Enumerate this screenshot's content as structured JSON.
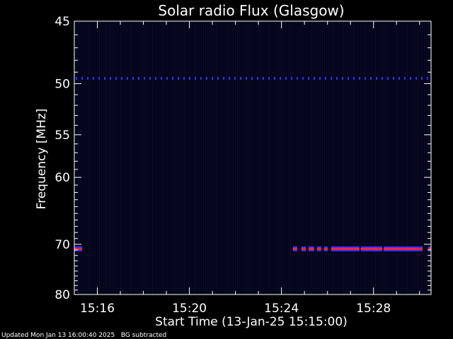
{
  "chart_data": {
    "type": "heatmap",
    "title": "Solar radio Flux (Glasgow)",
    "xlabel": "Start Time (13-Jan-25 15:15:00)",
    "ylabel": "Frequency [MHz]",
    "x_unit": "time",
    "xlim": [
      "15:15:00",
      "15:30:30"
    ],
    "x_ticks": [
      "15:16",
      "15:20",
      "15:24",
      "15:28"
    ],
    "y_ticks": [
      45,
      50,
      55,
      60,
      70,
      80
    ],
    "ylim": [
      45,
      80
    ],
    "background_color": "#05051a",
    "emission_color": "#ff2040",
    "emission_edge_color": "#3030ff",
    "bands": [
      {
        "freq": 49.5,
        "start": "15:15:00",
        "end": "15:30:30",
        "intensity": "low",
        "style": "dashed"
      },
      {
        "freq": 70.8,
        "start": "15:15:00",
        "end": "15:15:20",
        "intensity": "high",
        "style": "solid"
      },
      {
        "freq": 70.8,
        "start": "15:24:30",
        "end": "15:30:30",
        "intensity": "high",
        "style": "dashed-dense"
      }
    ]
  },
  "footer": {
    "updated": "Updated Mon Jan 13 16:00:40 2025",
    "note": "BG subtracted"
  }
}
